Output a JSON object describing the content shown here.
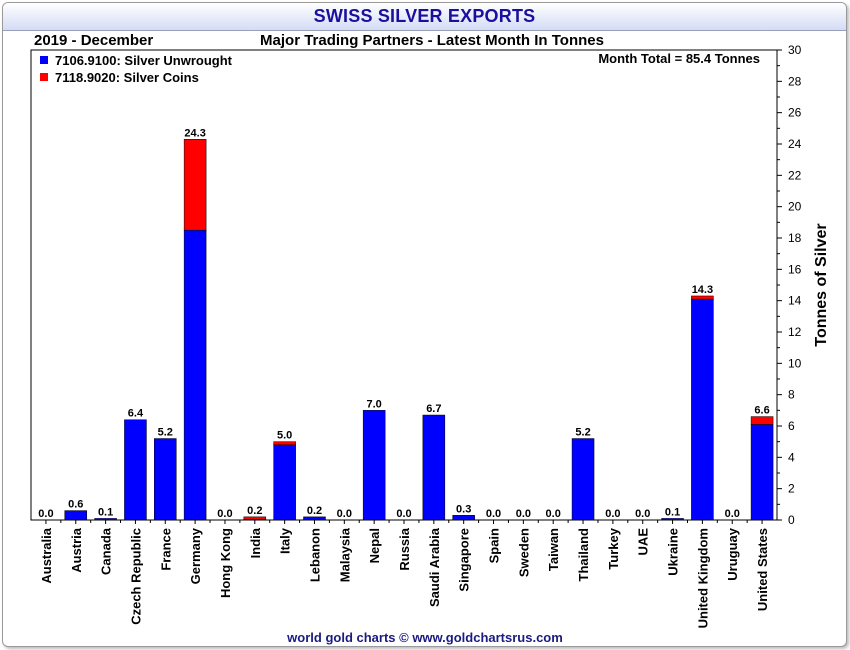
{
  "header": {
    "title": "SWISS SILVER EXPORTS",
    "period": "2019 - December",
    "subtitle": "Major Trading Partners - Latest Month In Tonnes",
    "month_total": "Month Total = 85.4 Tonnes"
  },
  "footer": {
    "credit": "world gold charts © www.goldchartsrus.com"
  },
  "colors": {
    "unwrought": "#0000ff",
    "coins": "#ff0000",
    "title": "#1a0f9e"
  },
  "chart_data": {
    "type": "bar",
    "stacked": true,
    "title": "SWISS SILVER EXPORTS",
    "subtitle": "Major Trading Partners - Latest Month In Tonnes",
    "ylabel": "Tonnes of Silver",
    "ylim": [
      0,
      30
    ],
    "yticks": [
      0,
      2,
      4,
      6,
      8,
      10,
      12,
      14,
      16,
      18,
      20,
      22,
      24,
      26,
      28,
      30
    ],
    "grid": false,
    "legend_position": "top-left",
    "categories": [
      "Australia",
      "Austria",
      "Canada",
      "Czech Republic",
      "France",
      "Germany",
      "Hong Kong",
      "India",
      "Italy",
      "Lebanon",
      "Malaysia",
      "Nepal",
      "Russia",
      "Saudi Arabia",
      "Singapore",
      "Spain",
      "Sweden",
      "Taiwan",
      "Thailand",
      "Turkey",
      "UAE",
      "Ukraine",
      "United Kingdom",
      "Uruguay",
      "United States"
    ],
    "series": [
      {
        "name": "7106.9100: Silver Unwrought",
        "color": "#0000ff",
        "values": [
          0.0,
          0.6,
          0.1,
          6.4,
          5.2,
          18.5,
          0.0,
          0.05,
          4.8,
          0.2,
          0.0,
          7.0,
          0.0,
          6.7,
          0.3,
          0.0,
          0.0,
          0.0,
          5.2,
          0.0,
          0.0,
          0.1,
          14.1,
          0.0,
          6.1
        ]
      },
      {
        "name": "7118.9020: Silver Coins",
        "color": "#ff0000",
        "values": [
          0.0,
          0.0,
          0.0,
          0.0,
          0.0,
          5.8,
          0.0,
          0.15,
          0.2,
          0.0,
          0.0,
          0.0,
          0.0,
          0.0,
          0.0,
          0.0,
          0.0,
          0.0,
          0.0,
          0.0,
          0.0,
          0.0,
          0.2,
          0.0,
          0.5
        ]
      }
    ],
    "totals_labels": [
      "0.0",
      "0.6",
      "0.1",
      "6.4",
      "5.2",
      "24.3",
      "0.0",
      "0.2",
      "5.0",
      "0.2",
      "0.0",
      "7.0",
      "0.0",
      "6.7",
      "0.3",
      "0.0",
      "0.0",
      "0.0",
      "5.2",
      "0.0",
      "0.0",
      "0.1",
      "14.3",
      "0.0",
      "6.6"
    ]
  }
}
